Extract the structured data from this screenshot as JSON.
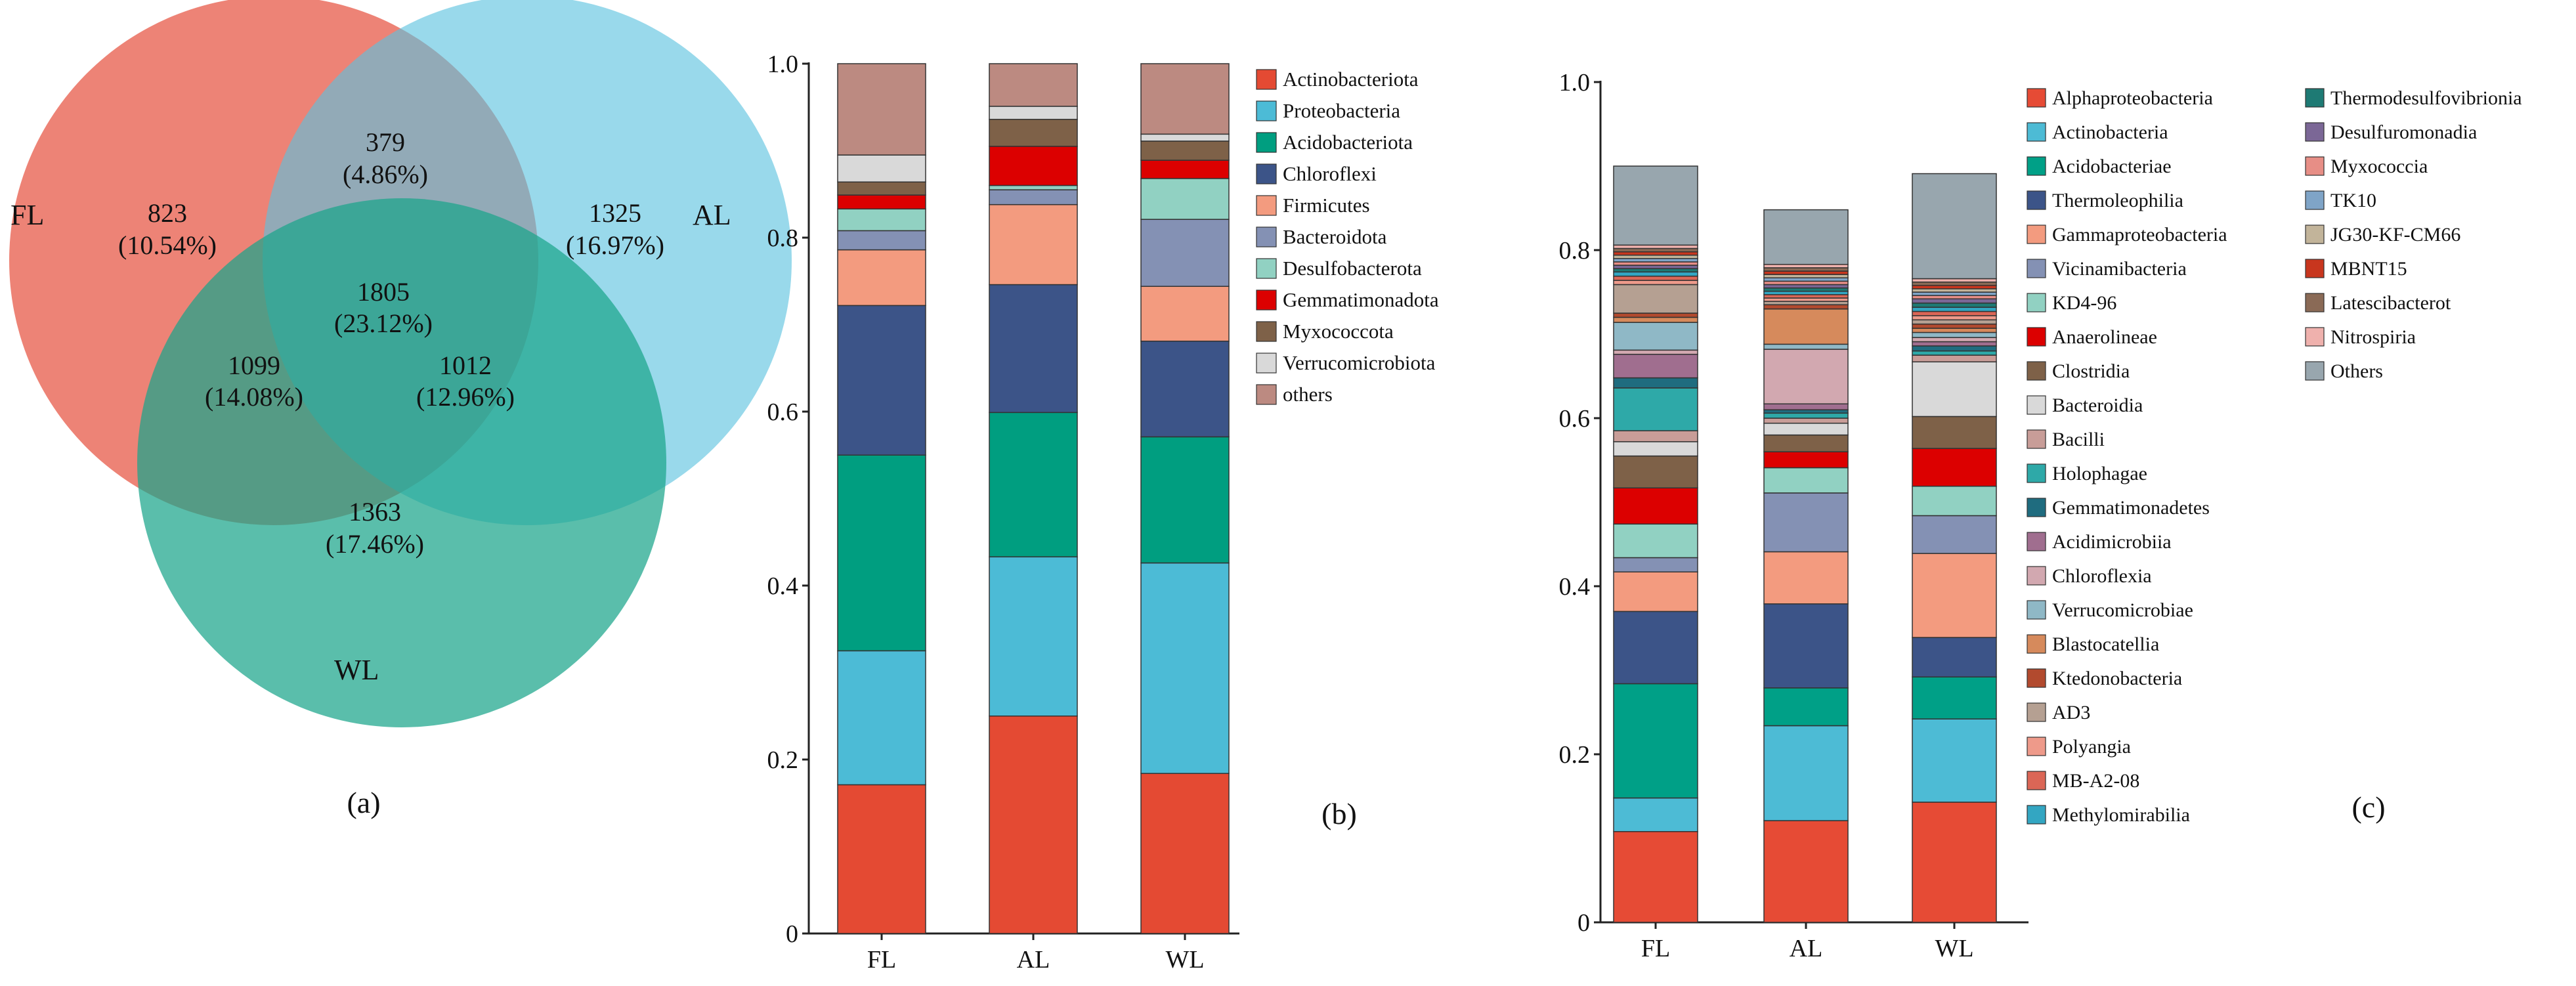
{
  "venn": {
    "sets": [
      {
        "name": "FL",
        "color": "#E8604F"
      },
      {
        "name": "AL",
        "color": "#5BC2DF"
      },
      {
        "name": "WL",
        "color": "#1AA58A"
      }
    ],
    "regions": [
      {
        "key": "fl_only",
        "count": "823",
        "percent": "(10.54%)"
      },
      {
        "key": "al_only",
        "count": "1325",
        "percent": "(16.97%)"
      },
      {
        "key": "wl_only",
        "count": "1363",
        "percent": "(17.46%)"
      },
      {
        "key": "fl_al",
        "count": "379",
        "percent": "(4.86%)"
      },
      {
        "key": "fl_wl",
        "count": "1099",
        "percent": "(14.08%)"
      },
      {
        "key": "al_wl",
        "count": "1012",
        "percent": "(12.96%)"
      },
      {
        "key": "all",
        "count": "1805",
        "percent": "(23.12%)"
      }
    ],
    "panel_label": "(a)"
  },
  "chart_data": [
    {
      "type": "bar",
      "stacked": true,
      "panel_label": "(b)",
      "categories": [
        "FL",
        "AL",
        "WL"
      ],
      "ylim": [
        0,
        1.0
      ],
      "yticks": [
        "0",
        "0.2",
        "0.4",
        "0.6",
        "0.8",
        "1.0"
      ],
      "legend_position": "right",
      "series": [
        {
          "name": "Actinobacteriota",
          "color": "#E44A33",
          "values": [
            0.171,
            0.25,
            0.184
          ]
        },
        {
          "name": "Proteobacteria",
          "color": "#4CBBD6",
          "values": [
            0.154,
            0.183,
            0.242
          ]
        },
        {
          "name": "Acidobacteriota",
          "color": "#009E80",
          "values": [
            0.225,
            0.166,
            0.145
          ]
        },
        {
          "name": "Chloroflexi",
          "color": "#3C5488",
          "values": [
            0.172,
            0.147,
            0.11
          ]
        },
        {
          "name": "Firmicutes",
          "color": "#F39B7F",
          "values": [
            0.064,
            0.092,
            0.063
          ]
        },
        {
          "name": "Bacteroidota",
          "color": "#8491B4",
          "values": [
            0.022,
            0.017,
            0.077
          ]
        },
        {
          "name": "Desulfobacterota",
          "color": "#91D1C2",
          "values": [
            0.025,
            0.005,
            0.047
          ]
        },
        {
          "name": "Gemmatimonadota",
          "color": "#DC0000",
          "values": [
            0.016,
            0.045,
            0.021
          ]
        },
        {
          "name": "Myxococcota",
          "color": "#7E6148",
          "values": [
            0.015,
            0.031,
            0.022
          ]
        },
        {
          "name": "Verrucomicrobiota",
          "color": "#D9D9D9",
          "values": [
            0.031,
            0.015,
            0.008
          ]
        },
        {
          "name": "others",
          "color": "#BC8A81",
          "values": [
            0.105,
            0.049,
            0.081
          ]
        }
      ]
    },
    {
      "type": "bar",
      "stacked": true,
      "panel_label": "(c)",
      "categories": [
        "FL",
        "AL",
        "WL"
      ],
      "ylim": [
        0,
        1.0
      ],
      "yticks": [
        "0",
        "0.2",
        "0.4",
        "0.6",
        "0.8",
        "1.0"
      ],
      "legend_position": "right",
      "series": [
        {
          "name": "Alphaproteobacteria",
          "color": "#E64B35",
          "values": [
            0.108,
            0.121,
            0.143
          ]
        },
        {
          "name": "Actinobacteria",
          "color": "#4DBBD5",
          "values": [
            0.04,
            0.113,
            0.099
          ]
        },
        {
          "name": "Acidobacteriae",
          "color": "#00A087",
          "values": [
            0.136,
            0.045,
            0.05
          ]
        },
        {
          "name": "Thermoleophilia",
          "color": "#3C5488",
          "values": [
            0.086,
            0.1,
            0.047
          ]
        },
        {
          "name": "Gammaproteobacteria",
          "color": "#F39B7F",
          "values": [
            0.047,
            0.062,
            0.1
          ]
        },
        {
          "name": "Vicinamibacteria",
          "color": "#8491B4",
          "values": [
            0.017,
            0.07,
            0.045
          ]
        },
        {
          "name": "KD4-96",
          "color": "#91D1C2",
          "values": [
            0.04,
            0.03,
            0.035
          ]
        },
        {
          "name": "Anaerolineae",
          "color": "#DC0000",
          "values": [
            0.043,
            0.019,
            0.045
          ]
        },
        {
          "name": "Clostridia",
          "color": "#7E6148",
          "values": [
            0.038,
            0.02,
            0.038
          ]
        },
        {
          "name": "Bacteroidia",
          "color": "#D9D9D9",
          "values": [
            0.017,
            0.014,
            0.065
          ]
        },
        {
          "name": "Bacilli",
          "color": "#C89D98",
          "values": [
            0.013,
            0.006,
            0.008
          ]
        },
        {
          "name": "Holophagae",
          "color": "#2EA9A8",
          "values": [
            0.051,
            0.006,
            0.005
          ]
        },
        {
          "name": "Gemmatimonadetes",
          "color": "#1F6C7F",
          "values": [
            0.012,
            0.004,
            0.006
          ]
        },
        {
          "name": "Acidimicrobiia",
          "color": "#A06E8F",
          "values": [
            0.028,
            0.007,
            0.005
          ]
        },
        {
          "name": "Chloroflexia",
          "color": "#D2A8B0",
          "values": [
            0.005,
            0.065,
            0.005
          ]
        },
        {
          "name": "Verrucomicrobiae",
          "color": "#8FB8C6",
          "values": [
            0.033,
            0.006,
            0.006
          ]
        },
        {
          "name": "Blastocatellia",
          "color": "#D68A5C",
          "values": [
            0.006,
            0.042,
            0.005
          ]
        },
        {
          "name": "Ktedonobacteria",
          "color": "#B24A2E",
          "values": [
            0.005,
            0.005,
            0.005
          ]
        },
        {
          "name": "AD3",
          "color": "#B5A092",
          "values": [
            0.034,
            0.004,
            0.005
          ]
        },
        {
          "name": "Polyangia",
          "color": "#EE9A8A",
          "values": [
            0.005,
            0.004,
            0.005
          ]
        },
        {
          "name": "MB-A2-08",
          "color": "#DB6656",
          "values": [
            0.005,
            0.004,
            0.005
          ]
        },
        {
          "name": "Methylomirabilia",
          "color": "#33A6C2",
          "values": [
            0.005,
            0.004,
            0.005
          ]
        },
        {
          "name": "Thermodesulfovibrionia",
          "color": "#1E7A74",
          "values": [
            0.004,
            0.004,
            0.005
          ]
        },
        {
          "name": "Desulfuromonadia",
          "color": "#7B6796",
          "values": [
            0.004,
            0.004,
            0.005
          ]
        },
        {
          "name": "Myxococcia",
          "color": "#E78E86",
          "values": [
            0.004,
            0.004,
            0.004
          ]
        },
        {
          "name": "TK10",
          "color": "#7FA4C7",
          "values": [
            0.004,
            0.004,
            0.004
          ]
        },
        {
          "name": "JG30-KF-CM66",
          "color": "#C2B49A",
          "values": [
            0.004,
            0.004,
            0.004
          ]
        },
        {
          "name": "MBNT15",
          "color": "#C8361E",
          "values": [
            0.004,
            0.004,
            0.004
          ]
        },
        {
          "name": "Latescibacterot",
          "color": "#8A6A56",
          "values": [
            0.004,
            0.004,
            0.004
          ]
        },
        {
          "name": "Nitrospiria",
          "color": "#EFB1AD",
          "values": [
            0.004,
            0.004,
            0.004
          ]
        },
        {
          "name": "Others",
          "color": "#98A6AE",
          "values": [
            0.094,
            0.065,
            0.125
          ]
        }
      ]
    }
  ]
}
